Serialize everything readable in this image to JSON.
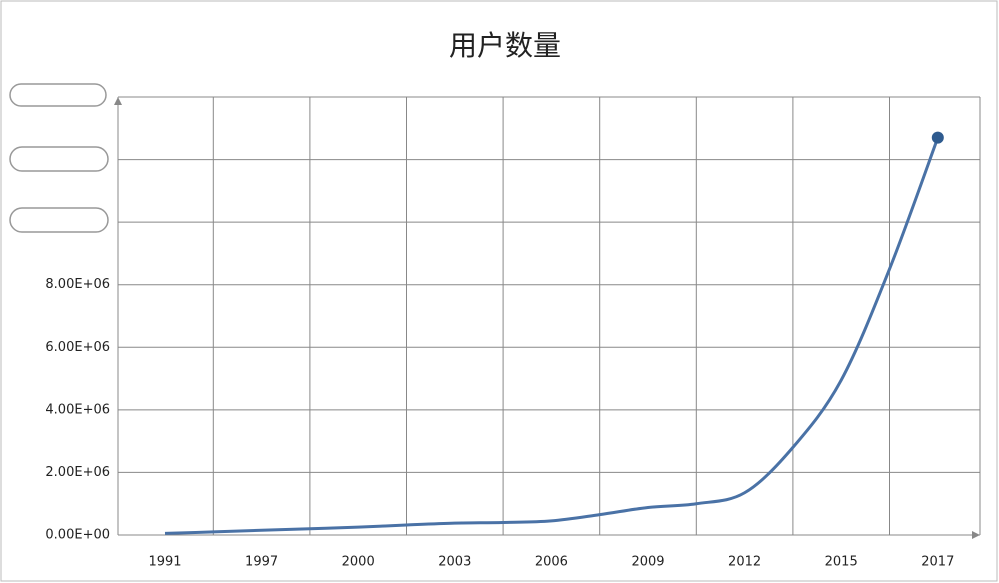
{
  "chart_data": {
    "type": "line",
    "title": "用户数量",
    "categories": [
      "1991",
      null,
      "1997",
      null,
      "2000",
      null,
      "2003",
      null,
      "2006",
      null,
      "2009",
      null,
      "2012",
      null,
      "2015",
      null,
      "2017"
    ],
    "series": [
      {
        "color": "#4a72a6",
        "values": [
          50000,
          100000,
          150000,
          200000,
          250000,
          320000,
          380000,
          400000,
          450000,
          650000,
          880000,
          1000000,
          1350000,
          2800000,
          4950000,
          8500000,
          12700000
        ]
      }
    ],
    "ylim": [
      0,
      14000000
    ],
    "yticks": [
      {
        "value": 0,
        "label": "0.00E+00"
      },
      {
        "value": 2000000,
        "label": "2.00E+06"
      },
      {
        "value": 4000000,
        "label": "4.00E+06"
      },
      {
        "value": 6000000,
        "label": "6.00E+06"
      },
      {
        "value": 8000000,
        "label": "8.00E+06"
      },
      {
        "value": 10000000
      },
      {
        "value": 12000000
      },
      {
        "value": 14000000
      }
    ],
    "grid": true
  }
}
